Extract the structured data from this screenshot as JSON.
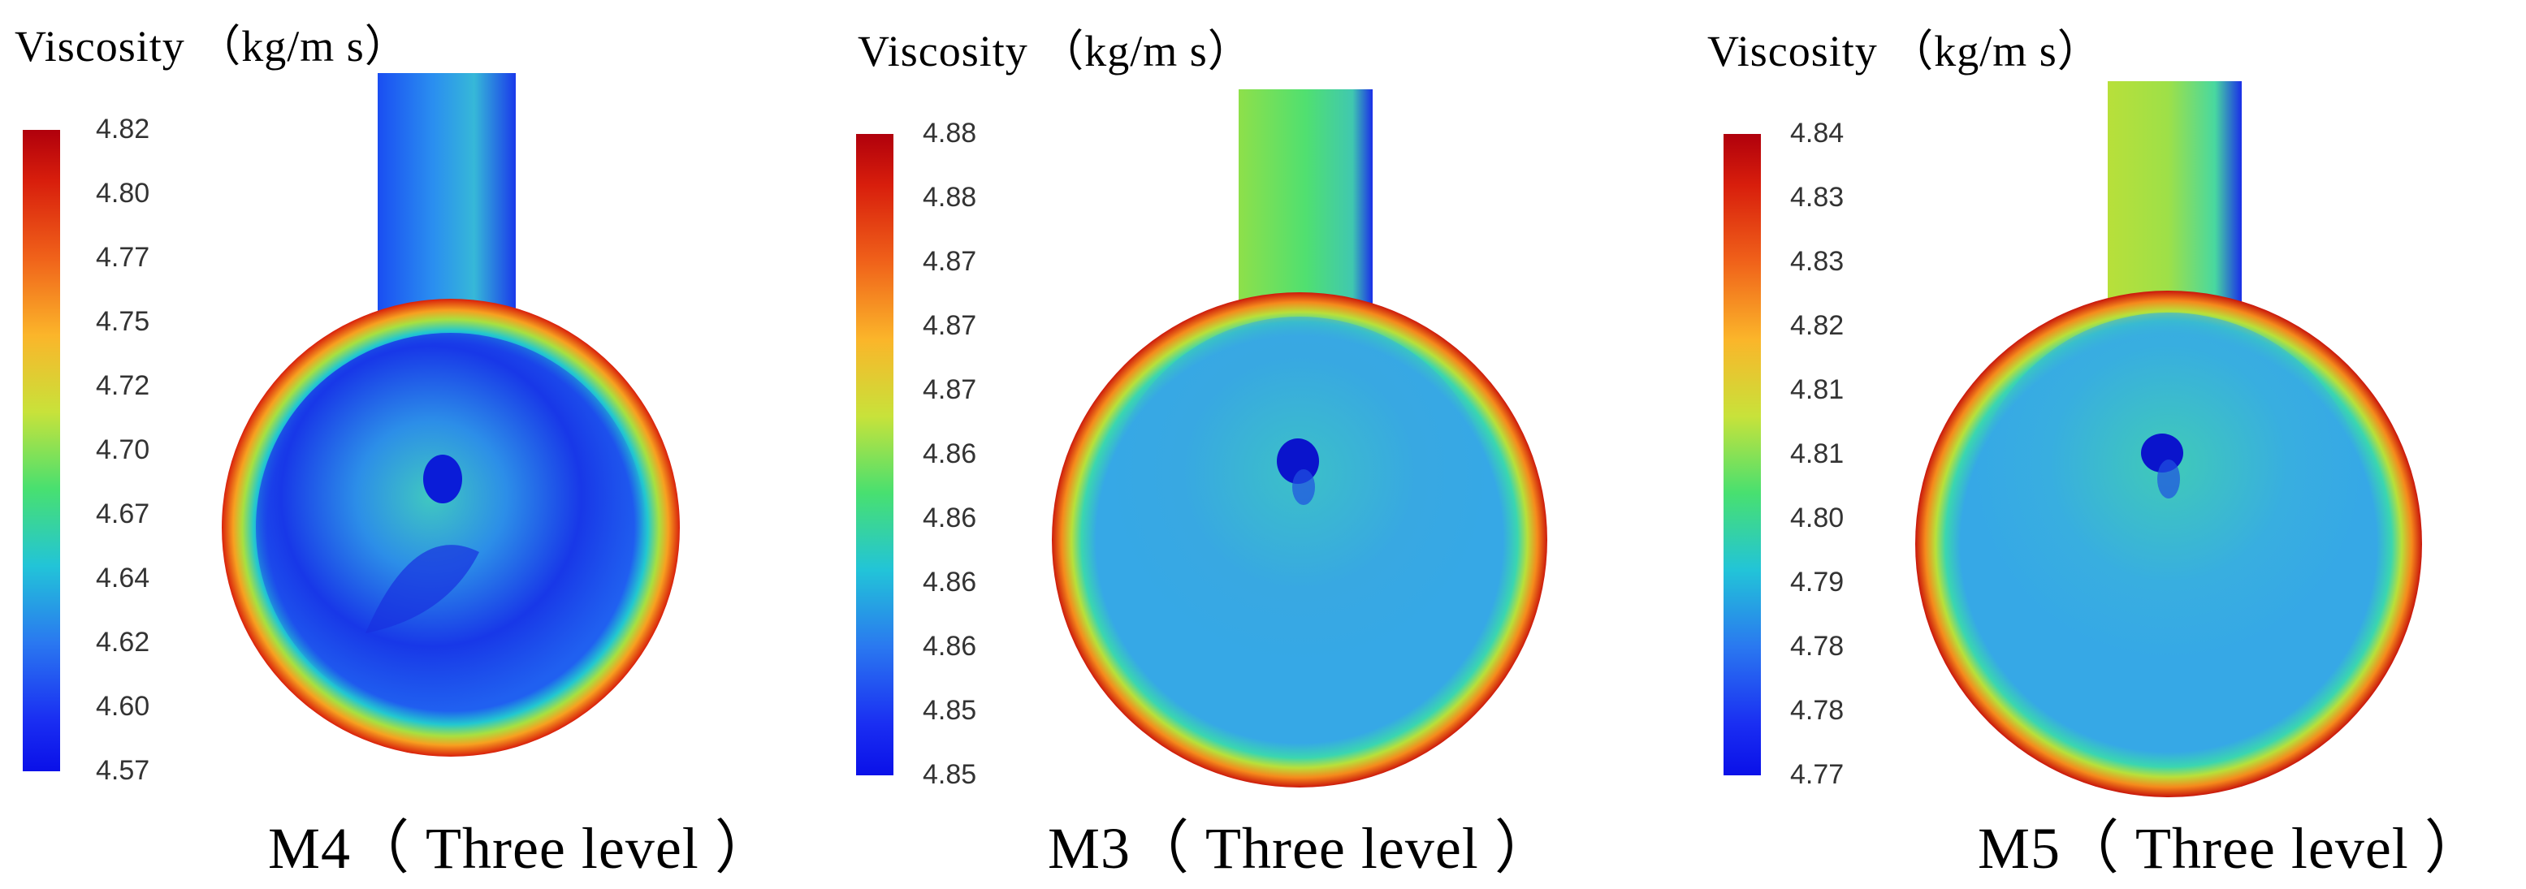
{
  "panels": [
    {
      "id": "M4",
      "title": "Viscosity （kg/m s）",
      "caption": "M4（ Three level ）",
      "ticks": [
        "4.82",
        "4.80",
        "4.77",
        "4.75",
        "4.72",
        "4.70",
        "4.67",
        "4.64",
        "4.62",
        "4.60",
        "4.57"
      ],
      "colorbar_range": [
        4.57,
        4.82
      ]
    },
    {
      "id": "M3",
      "title": "Viscosity （kg/m s）",
      "caption": "M3（ Three level ）",
      "ticks": [
        "4.88",
        "4.88",
        "4.87",
        "4.87",
        "4.87",
        "4.86",
        "4.86",
        "4.86",
        "4.86",
        "4.85",
        "4.85"
      ],
      "colorbar_range": [
        4.85,
        4.88
      ]
    },
    {
      "id": "M5",
      "title": "Viscosity （kg/m s）",
      "caption": "M5（ Three level ）",
      "ticks": [
        "4.84",
        "4.83",
        "4.83",
        "4.82",
        "4.81",
        "4.81",
        "4.80",
        "4.79",
        "4.78",
        "4.78",
        "4.77"
      ],
      "colorbar_range": [
        4.77,
        4.84
      ]
    }
  ],
  "colors": {
    "high": "#c0000c",
    "mid": "#48e070",
    "low": "#0a10e8"
  }
}
